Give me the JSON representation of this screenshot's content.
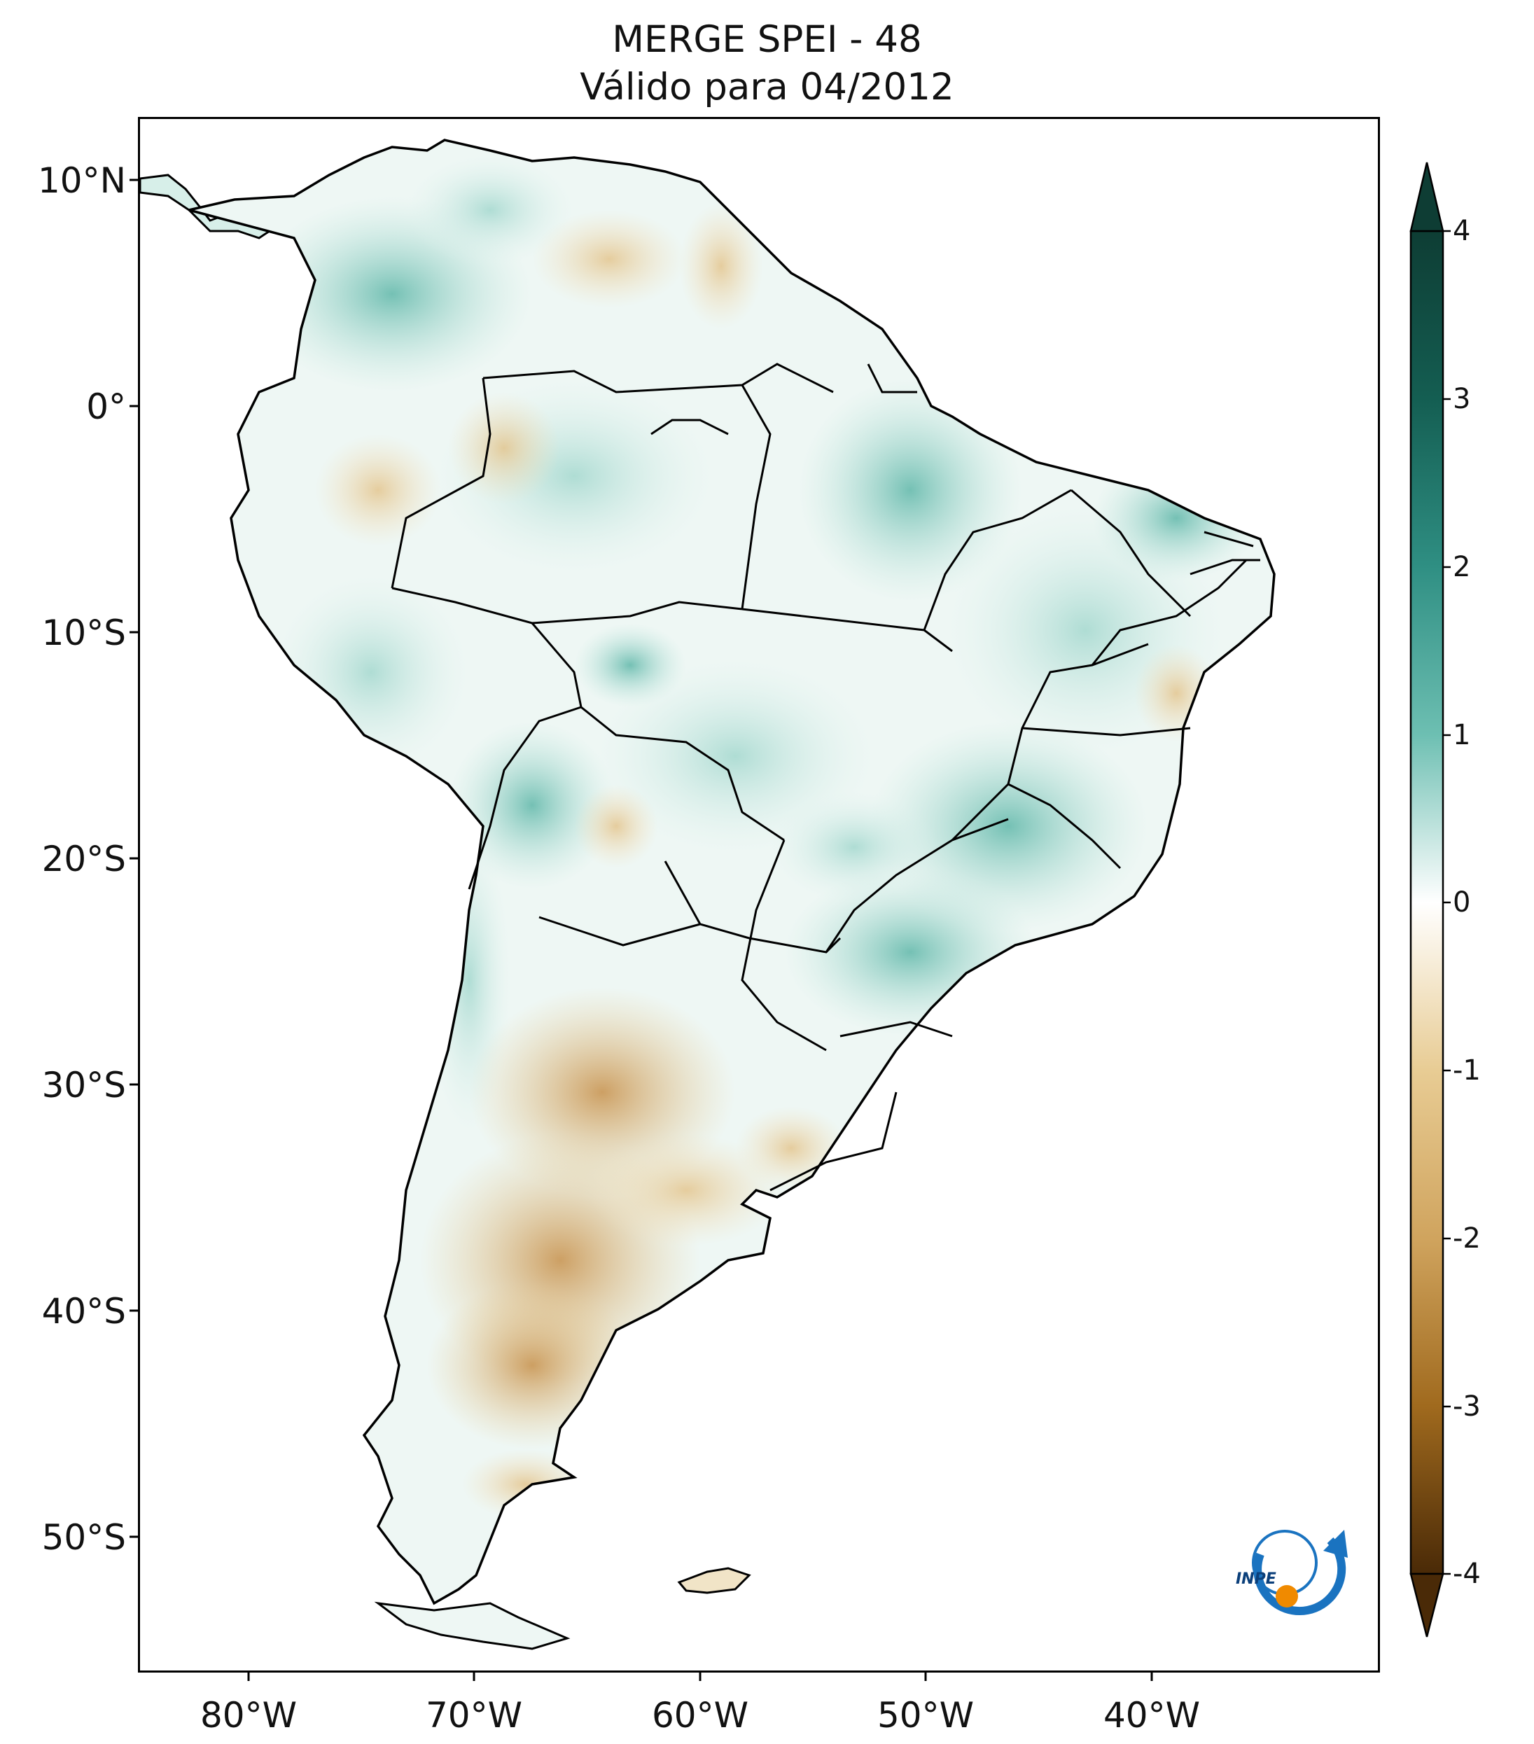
{
  "title": {
    "line1": "MERGE   SPEI - 48",
    "line2": "Válido para 04/2012"
  },
  "axes": {
    "lat_ticks": [
      "10°N",
      "0°",
      "10°S",
      "20°S",
      "30°S",
      "40°S",
      "50°S"
    ],
    "lon_ticks": [
      "80°W",
      "70°W",
      "60°W",
      "50°W",
      "40°W"
    ]
  },
  "colorbar": {
    "ticks": [
      "4",
      "3",
      "2",
      "1",
      "0",
      "-1",
      "-2",
      "-3",
      "-4"
    ],
    "colors": {
      "max": "#0e3d34",
      "high": "#2f8f83",
      "mid_high": "#9fd6cc",
      "zero": "#ffffff",
      "mid_low": "#e8cc94",
      "low": "#b77e2a",
      "min": "#4a2a07"
    },
    "extend": "both"
  },
  "logo": {
    "text": "INPE",
    "colors": {
      "arc": "#1a73c0",
      "dot": "#f08a00"
    }
  }
}
